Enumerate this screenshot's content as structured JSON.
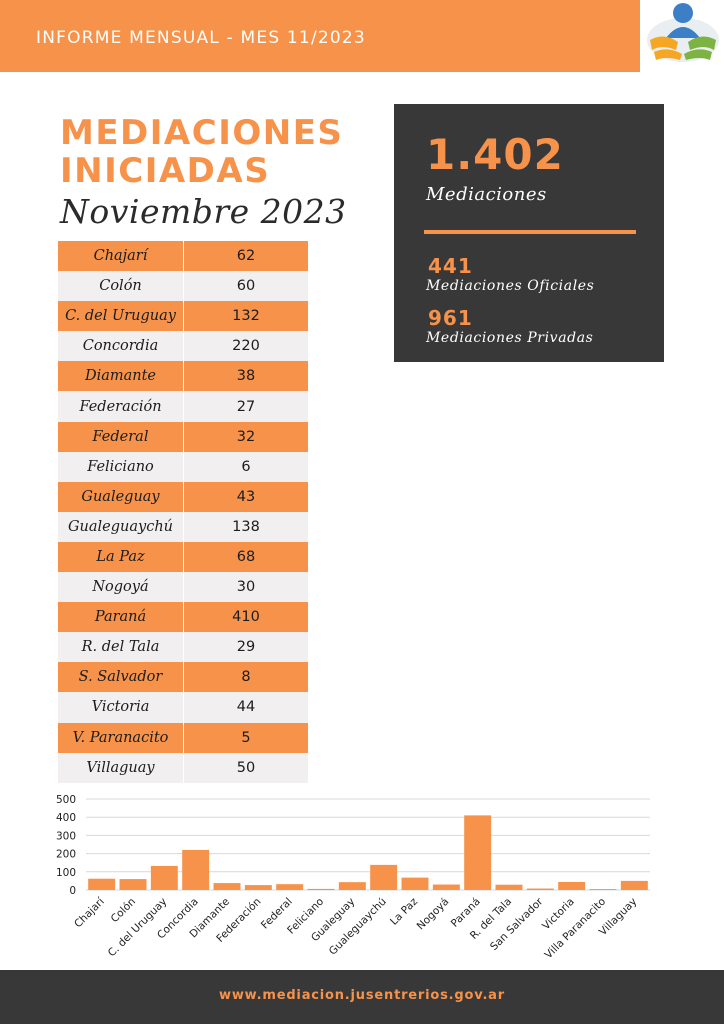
{
  "header": {
    "title": "INFORME MENSUAL - MES 11/2023"
  },
  "title": {
    "line1": "MEDIACIONES",
    "line2": "INICIADAS",
    "subtitle": "Noviembre 2023"
  },
  "table": {
    "rows": [
      {
        "name": "Chajarí",
        "value": "62"
      },
      {
        "name": "Colón",
        "value": "60"
      },
      {
        "name": "C. del Uruguay",
        "value": "132"
      },
      {
        "name": "Concordia",
        "value": "220"
      },
      {
        "name": "Diamante",
        "value": "38"
      },
      {
        "name": "Federación",
        "value": "27"
      },
      {
        "name": "Federal",
        "value": "32"
      },
      {
        "name": "Feliciano",
        "value": "6"
      },
      {
        "name": "Gualeguay",
        "value": "43"
      },
      {
        "name": "Gualeguaychú",
        "value": "138"
      },
      {
        "name": "La Paz",
        "value": "68"
      },
      {
        "name": "Nogoyá",
        "value": "30"
      },
      {
        "name": "Paraná",
        "value": "410"
      },
      {
        "name": "R. del Tala",
        "value": "29"
      },
      {
        "name": "S. Salvador",
        "value": "8"
      },
      {
        "name": "Victoria",
        "value": "44"
      },
      {
        "name": "V. Paranacito",
        "value": "5"
      },
      {
        "name": "Villaguay",
        "value": "50"
      }
    ]
  },
  "stats": {
    "total": "1.402",
    "total_label": "Mediaciones",
    "oficiales": "441",
    "oficiales_label": "Mediaciones Oficiales",
    "privadas": "961",
    "privadas_label": "Mediaciones Privadas"
  },
  "footer": {
    "url": "www.mediacion.jusentrerios.gov.ar"
  },
  "colors": {
    "accent": "#f7924a",
    "dark": "#383838",
    "light_row": "#f1efef"
  },
  "logo": {
    "icon": "people-logo-icon"
  },
  "chart_data": {
    "type": "bar",
    "categories": [
      "Chajarí",
      "Colón",
      "C. del Uruguay",
      "Concordia",
      "Diamante",
      "Federación",
      "Federal",
      "Feliciano",
      "Gualeguay",
      "Gualeguaychú",
      "La Paz",
      "Nogoyá",
      "Paraná",
      "R. del Tala",
      "San Salvador",
      "Victoria",
      "Villa Paranacito",
      "Villaguay"
    ],
    "values": [
      62,
      60,
      132,
      220,
      38,
      27,
      32,
      6,
      43,
      138,
      68,
      30,
      410,
      29,
      8,
      44,
      5,
      50
    ],
    "yticks": [
      "0",
      "100",
      "200",
      "300",
      "400",
      "500"
    ],
    "ylim": [
      0,
      500
    ],
    "grid": true,
    "color": "#f7924a"
  }
}
